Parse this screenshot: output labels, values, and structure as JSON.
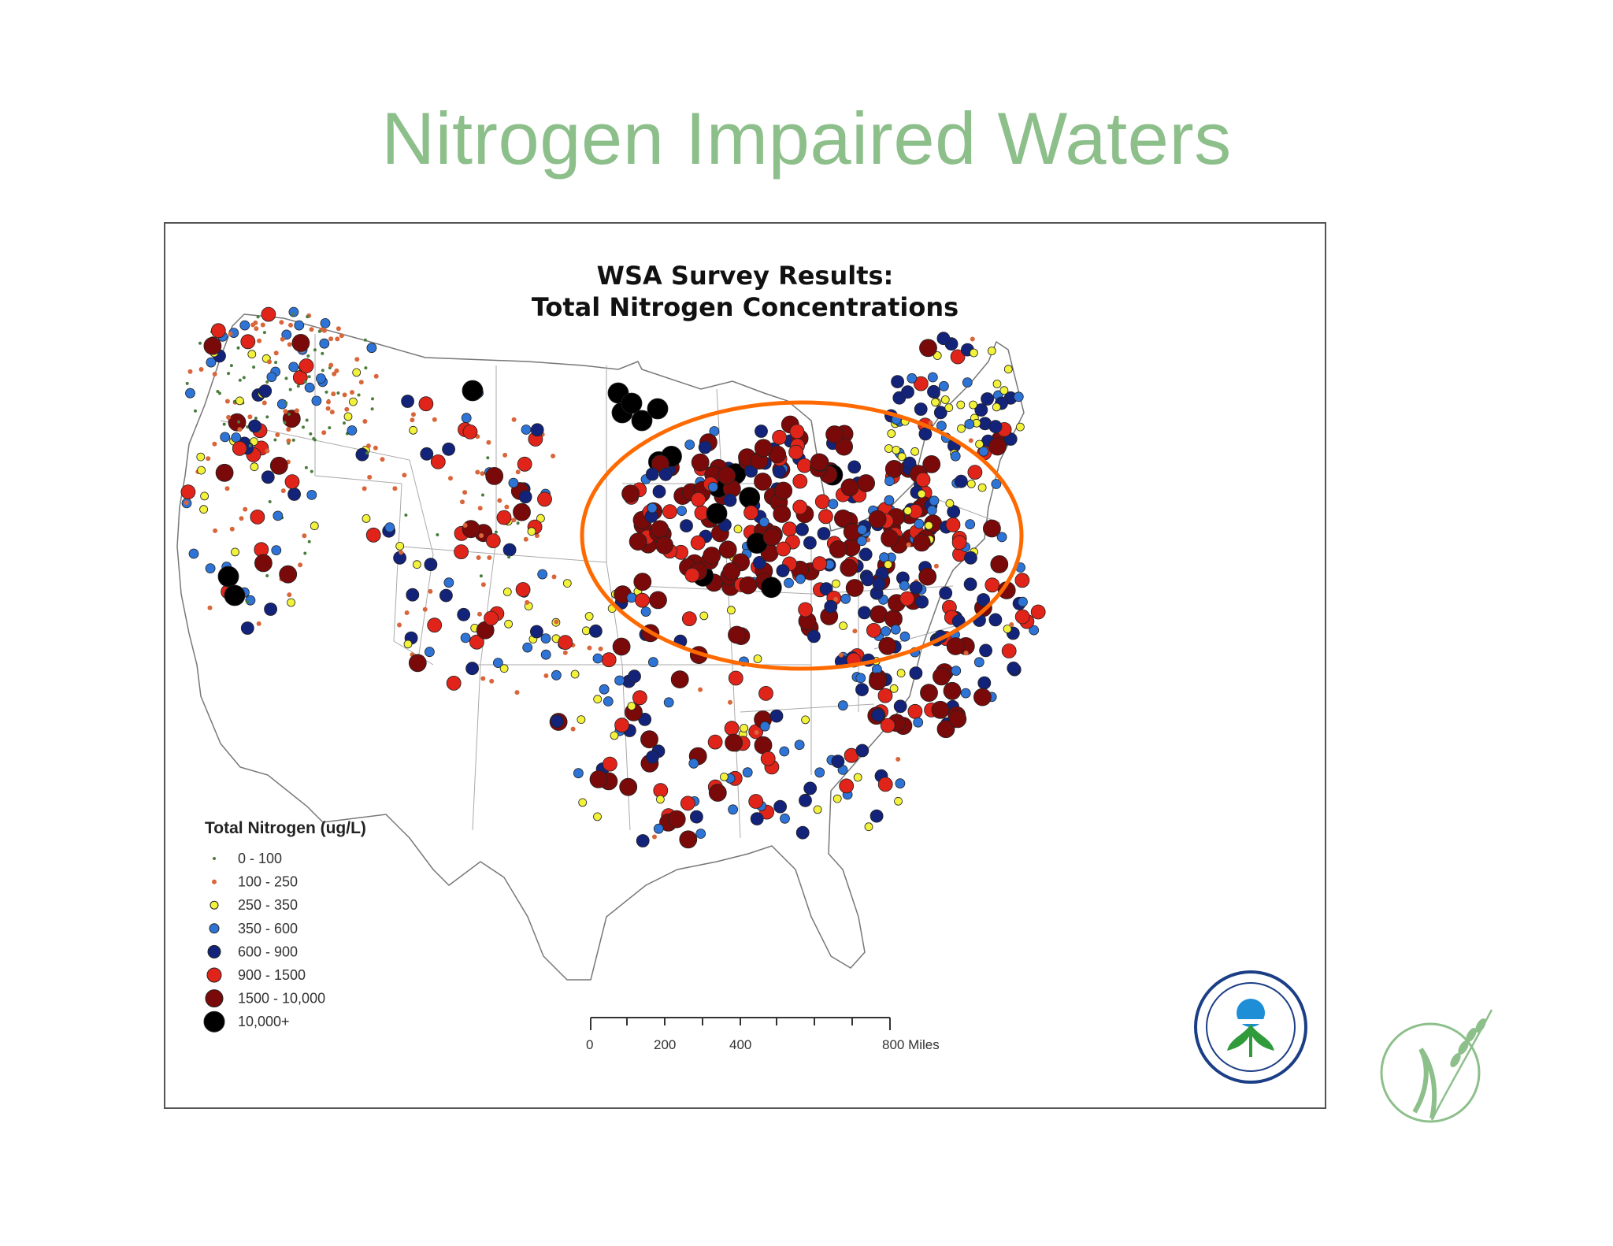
{
  "slide": {
    "title": "Nitrogen Impaired Waters"
  },
  "map": {
    "title_line1": "WSA Survey Results:",
    "title_line2": "Total Nitrogen Concentrations",
    "highlight_color": "#ff6a00",
    "highlight_region": "Upper Midwest / Corn Belt"
  },
  "legend": {
    "title": "Total Nitrogen (ug/L)",
    "classes": [
      {
        "label": "0 - 100",
        "color": "#4a7d3c"
      },
      {
        "label": "100 - 250",
        "color": "#d9663a"
      },
      {
        "label": "250 - 350",
        "color": "#f2f23a"
      },
      {
        "label": "350 - 600",
        "color": "#2e74d6"
      },
      {
        "label": "600 - 900",
        "color": "#13237a"
      },
      {
        "label": "900 - 1500",
        "color": "#e0241a"
      },
      {
        "label": "1500 - 10,000",
        "color": "#7a0a0a"
      },
      {
        "label": "10,000+",
        "color": "#000000"
      }
    ]
  },
  "scale_bar": {
    "labels": [
      "0",
      "200",
      "400",
      "800 Miles"
    ]
  },
  "logos": {
    "epa": "United States Environmental Protection Agency",
    "sand_county": "SAND COUNTY FOUNDATION"
  }
}
